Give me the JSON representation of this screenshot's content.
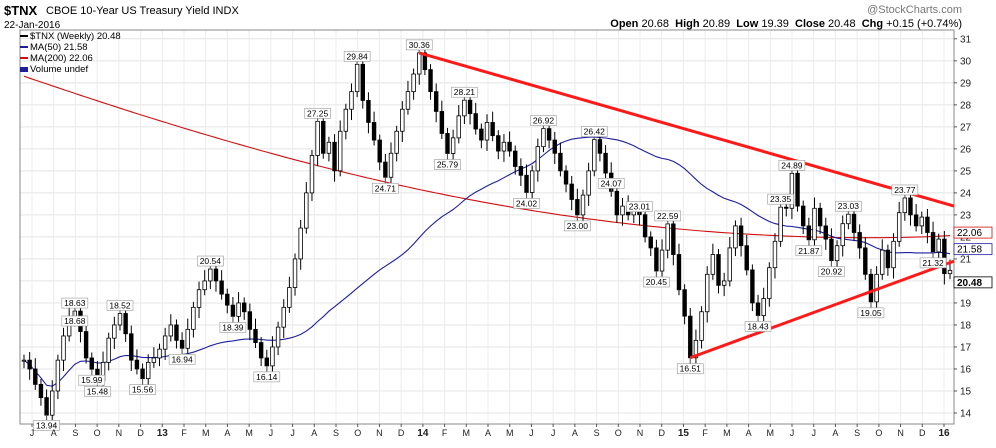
{
  "header": {
    "ticker": "$TNX",
    "description": "CBOE 10-Year US Treasury Yield INDX",
    "date": "22-Jan-2016",
    "brand": "@StockCharts.com",
    "quote": {
      "open_label": "Open",
      "open": "20.68",
      "high_label": "High",
      "high": "20.89",
      "low_label": "Low",
      "low": "19.39",
      "close_label": "Close",
      "close": "20.48",
      "chg_label": "Chg",
      "chg": "+0.15 (+0.74%)"
    }
  },
  "legend": [
    {
      "label": "$TNX (Weekly) 20.48",
      "color": "#000000"
    },
    {
      "label": "MA(50) 21.58",
      "color": "#1f1f9e"
    },
    {
      "label": "MA(200) 22.06",
      "color": "#d01010"
    },
    {
      "label": "Volume undef",
      "color": "#1f1f9e"
    }
  ],
  "chart_data": {
    "type": "line",
    "title": "$TNX CBOE 10-Year US Treasury Yield INDX",
    "y_axis": {
      "range": [
        13.5,
        31.4
      ],
      "side": "right",
      "ticks": [
        14,
        15,
        16,
        17,
        18,
        19,
        20,
        21,
        22,
        23,
        24,
        25,
        26,
        27,
        28,
        29,
        30,
        31
      ]
    },
    "x_axis": {
      "tick_labels": [
        "J",
        "A",
        "S",
        "O",
        "N",
        "D",
        "13",
        "F",
        "M",
        "A",
        "M",
        "J",
        "J",
        "A",
        "S",
        "O",
        "N",
        "D",
        "14",
        "F",
        "M",
        "A",
        "M",
        "J",
        "J",
        "A",
        "S",
        "O",
        "N",
        "D",
        "15",
        "F",
        "M",
        "A",
        "M",
        "J",
        "J",
        "A",
        "S",
        "O",
        "N",
        "D",
        "16"
      ]
    },
    "grid": true,
    "series": [
      {
        "name": "$TNX (Weekly)",
        "color": "#000000",
        "type": "ohlc",
        "close": [
          16.4,
          16.0,
          15.3,
          14.7,
          13.9,
          15.0,
          16.4,
          17.5,
          18.3,
          18.63,
          17.7,
          16.5,
          15.99,
          15.48,
          16.3,
          17.4,
          18.0,
          18.52,
          17.6,
          16.4,
          16.0,
          15.56,
          16.3,
          16.5,
          16.9,
          17.5,
          18.0,
          17.3,
          16.94,
          17.8,
          18.8,
          19.6,
          20.0,
          20.54,
          20.0,
          19.4,
          18.9,
          18.39,
          19.0,
          18.6,
          17.8,
          17.2,
          16.5,
          16.14,
          17.0,
          17.9,
          18.8,
          19.7,
          21.0,
          22.4,
          24.0,
          25.7,
          27.25,
          25.8,
          26.3,
          25.0,
          26.8,
          27.8,
          28.6,
          29.84,
          28.2,
          27.2,
          26.4,
          25.4,
          24.71,
          25.8,
          26.8,
          27.8,
          28.6,
          29.4,
          30.36,
          29.6,
          28.6,
          27.7,
          26.7,
          25.79,
          26.5,
          27.5,
          28.21,
          27.6,
          26.9,
          26.4,
          27.2,
          26.6,
          25.9,
          26.3,
          25.9,
          25.2,
          24.8,
          24.02,
          25.0,
          26.1,
          26.92,
          26.4,
          25.8,
          25.0,
          24.4,
          23.7,
          23.0,
          23.9,
          25.0,
          26.42,
          25.8,
          24.9,
          24.07,
          23.0,
          23.4,
          23.0,
          23.2,
          23.01,
          22.0,
          21.5,
          20.45,
          21.4,
          22.59,
          21.2,
          19.6,
          18.4,
          16.51,
          17.3,
          18.6,
          20.3,
          21.2,
          19.8,
          20.0,
          21.5,
          22.5,
          21.6,
          20.5,
          19.0,
          18.43,
          19.2,
          20.6,
          21.8,
          23.35,
          23.3,
          24.89,
          23.4,
          22.5,
          21.87,
          23.3,
          22.5,
          21.9,
          20.92,
          21.6,
          22.6,
          23.03,
          22.2,
          21.5,
          20.3,
          19.05,
          20.3,
          21.4,
          20.6,
          21.8,
          23.1,
          23.77,
          23.0,
          22.5,
          22.9,
          22.2,
          21.32,
          21.9,
          20.33,
          20.48
        ]
      },
      {
        "name": "MA(50)",
        "color": "#1f1f9e",
        "type": "line",
        "last": 21.58
      },
      {
        "name": "MA(200)",
        "color": "#d01010",
        "type": "line",
        "last": 22.06
      },
      {
        "name": "Trendlines",
        "color": "#ff1a1a",
        "type": "trendline"
      }
    ],
    "annotations": [
      "13.94",
      "18.63",
      "15.99",
      "15.48",
      "18.52",
      "15.56",
      "16.94",
      "20.54",
      "18.39",
      "16.14",
      "27.25",
      "29.84",
      "24.71",
      "30.36",
      "25.79",
      "28.21",
      "26.92",
      "24.02",
      "26.42",
      "23.00",
      "24.07",
      "23.01",
      "18.68",
      "20.45",
      "22.59",
      "16.51",
      "18.43",
      "23.35",
      "24.89",
      "20.92",
      "21.87",
      "23.03",
      "19.05",
      "23.77",
      "21.32"
    ],
    "price_labels": [
      "22.06",
      "21.58",
      "20.48"
    ]
  }
}
